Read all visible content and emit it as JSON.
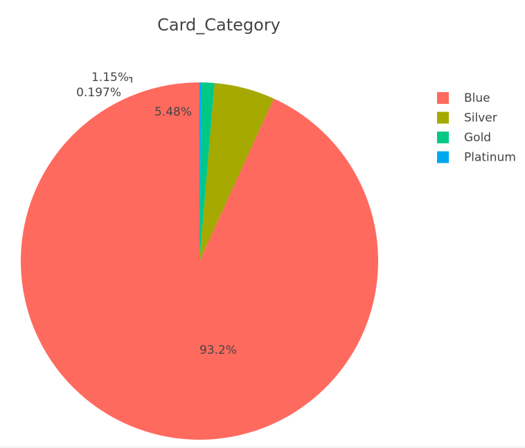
{
  "chart_data": {
    "type": "pie",
    "title": "Card_Category",
    "slices": [
      {
        "label": "Blue",
        "value": 93.2,
        "display": "93.2%",
        "color": "#ff6a5f"
      },
      {
        "label": "Silver",
        "value": 5.48,
        "display": "5.48%",
        "color": "#a5a900"
      },
      {
        "label": "Gold",
        "value": 1.15,
        "display": "1.15%",
        "color": "#00c887"
      },
      {
        "label": "Platinum",
        "value": 0.197,
        "display": "0.197%",
        "color": "#00a8ef"
      }
    ],
    "legend": {
      "position": "right",
      "items": [
        "Blue",
        "Silver",
        "Gold",
        "Platinum"
      ]
    },
    "direction": "counterclockwise",
    "start_angle": "top"
  }
}
